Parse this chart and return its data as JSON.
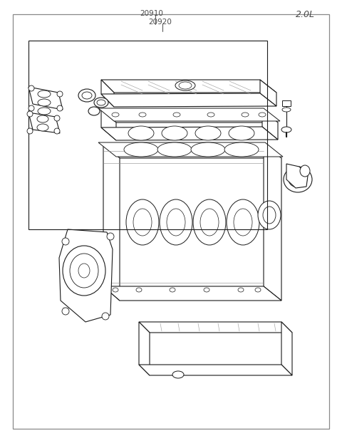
{
  "title": "2.0L",
  "label_20910": "20910",
  "label_20920": "20920",
  "bg_color": "#ffffff",
  "line_color": "#1a1a1a",
  "text_color": "#4a4a4a",
  "border_color": "#888888"
}
